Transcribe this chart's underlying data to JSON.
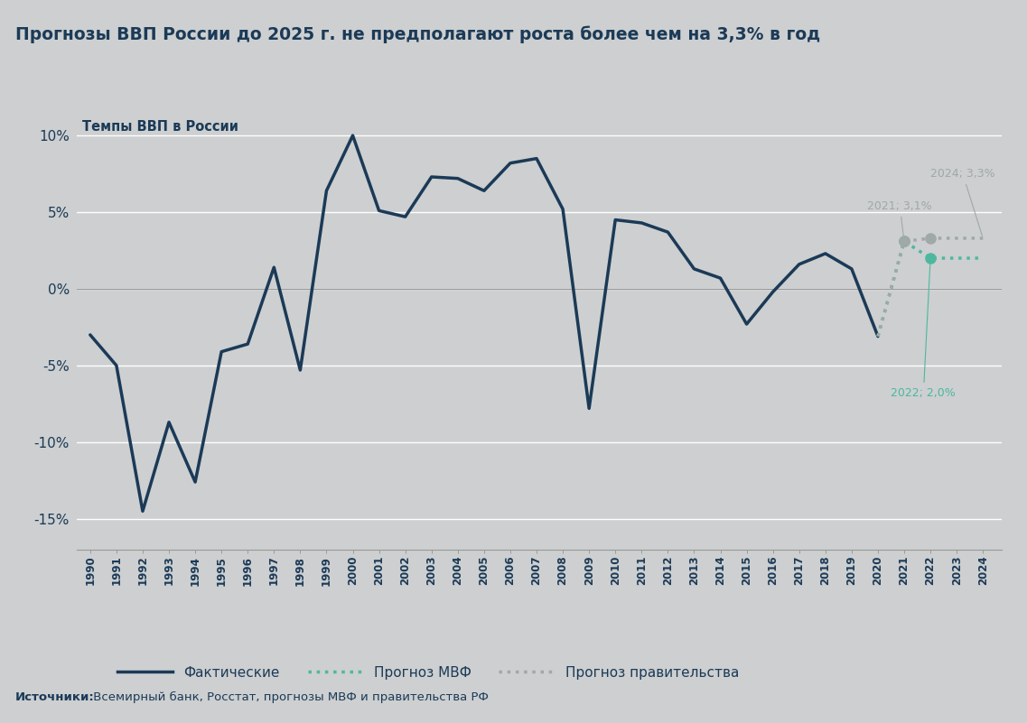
{
  "title": "Прогнозы ВВП России до 2025 г. не предполагают роста более чем на 3,3% в год",
  "subtitle": "Темпы ВВП в России",
  "source_bold": "Источники:",
  "source_rest": " Всемирный банк, Росстат, прогнозы МВФ и правительства РФ",
  "background_color": "#cdcfd0",
  "actual_color": "#1b3a57",
  "imf_color": "#4db89e",
  "gov_color": "#a0a8a8",
  "actual_years": [
    1990,
    1991,
    1992,
    1993,
    1994,
    1995,
    1996,
    1997,
    1998,
    1999,
    2000,
    2001,
    2002,
    2003,
    2004,
    2005,
    2006,
    2007,
    2008,
    2009,
    2010,
    2011,
    2012,
    2013,
    2014,
    2015,
    2016,
    2017,
    2018,
    2019,
    2020
  ],
  "actual_values": [
    -3.0,
    -5.0,
    -14.5,
    -8.7,
    -12.6,
    -4.1,
    -3.6,
    1.4,
    -5.3,
    6.4,
    10.0,
    5.1,
    4.7,
    7.3,
    7.2,
    6.4,
    8.2,
    8.5,
    5.2,
    -7.8,
    4.5,
    4.3,
    3.7,
    1.3,
    0.7,
    -2.3,
    -0.2,
    1.6,
    2.3,
    1.3,
    -3.1
  ],
  "imf_years": [
    2020,
    2021,
    2022,
    2023,
    2024
  ],
  "imf_values": [
    -3.1,
    3.1,
    2.0,
    2.0,
    2.0
  ],
  "gov_years": [
    2020,
    2021,
    2022,
    2023,
    2024
  ],
  "gov_values": [
    -3.1,
    3.1,
    3.3,
    3.3,
    3.3
  ],
  "ylim": [
    -17,
    12
  ],
  "yticks": [
    -15,
    -10,
    -5,
    0,
    5,
    10
  ],
  "legend_labels": [
    "Фактические",
    "Прогноз МВФ",
    "Прогноз правительства"
  ],
  "ann_2021_text": "2021; 3,1%",
  "ann_2024_text": "2024; 3,3%",
  "ann_2022_text": "2022; 2,0%"
}
